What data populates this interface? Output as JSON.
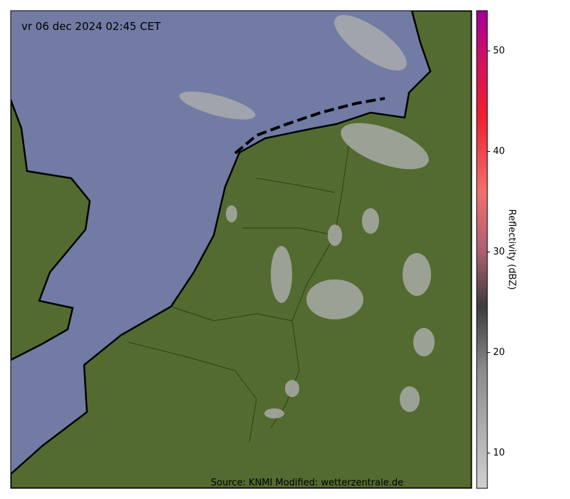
{
  "map": {
    "timestamp": "vr 06 dec 2024 02:45 CET",
    "source": "Source: KNMI Modified: wetterzentrale.de"
  },
  "colorbar": {
    "label": "Reflectivity (dBZ)",
    "lim": [
      6.5,
      54
    ],
    "ticks": [
      10,
      20,
      30,
      40,
      50
    ]
  }
}
